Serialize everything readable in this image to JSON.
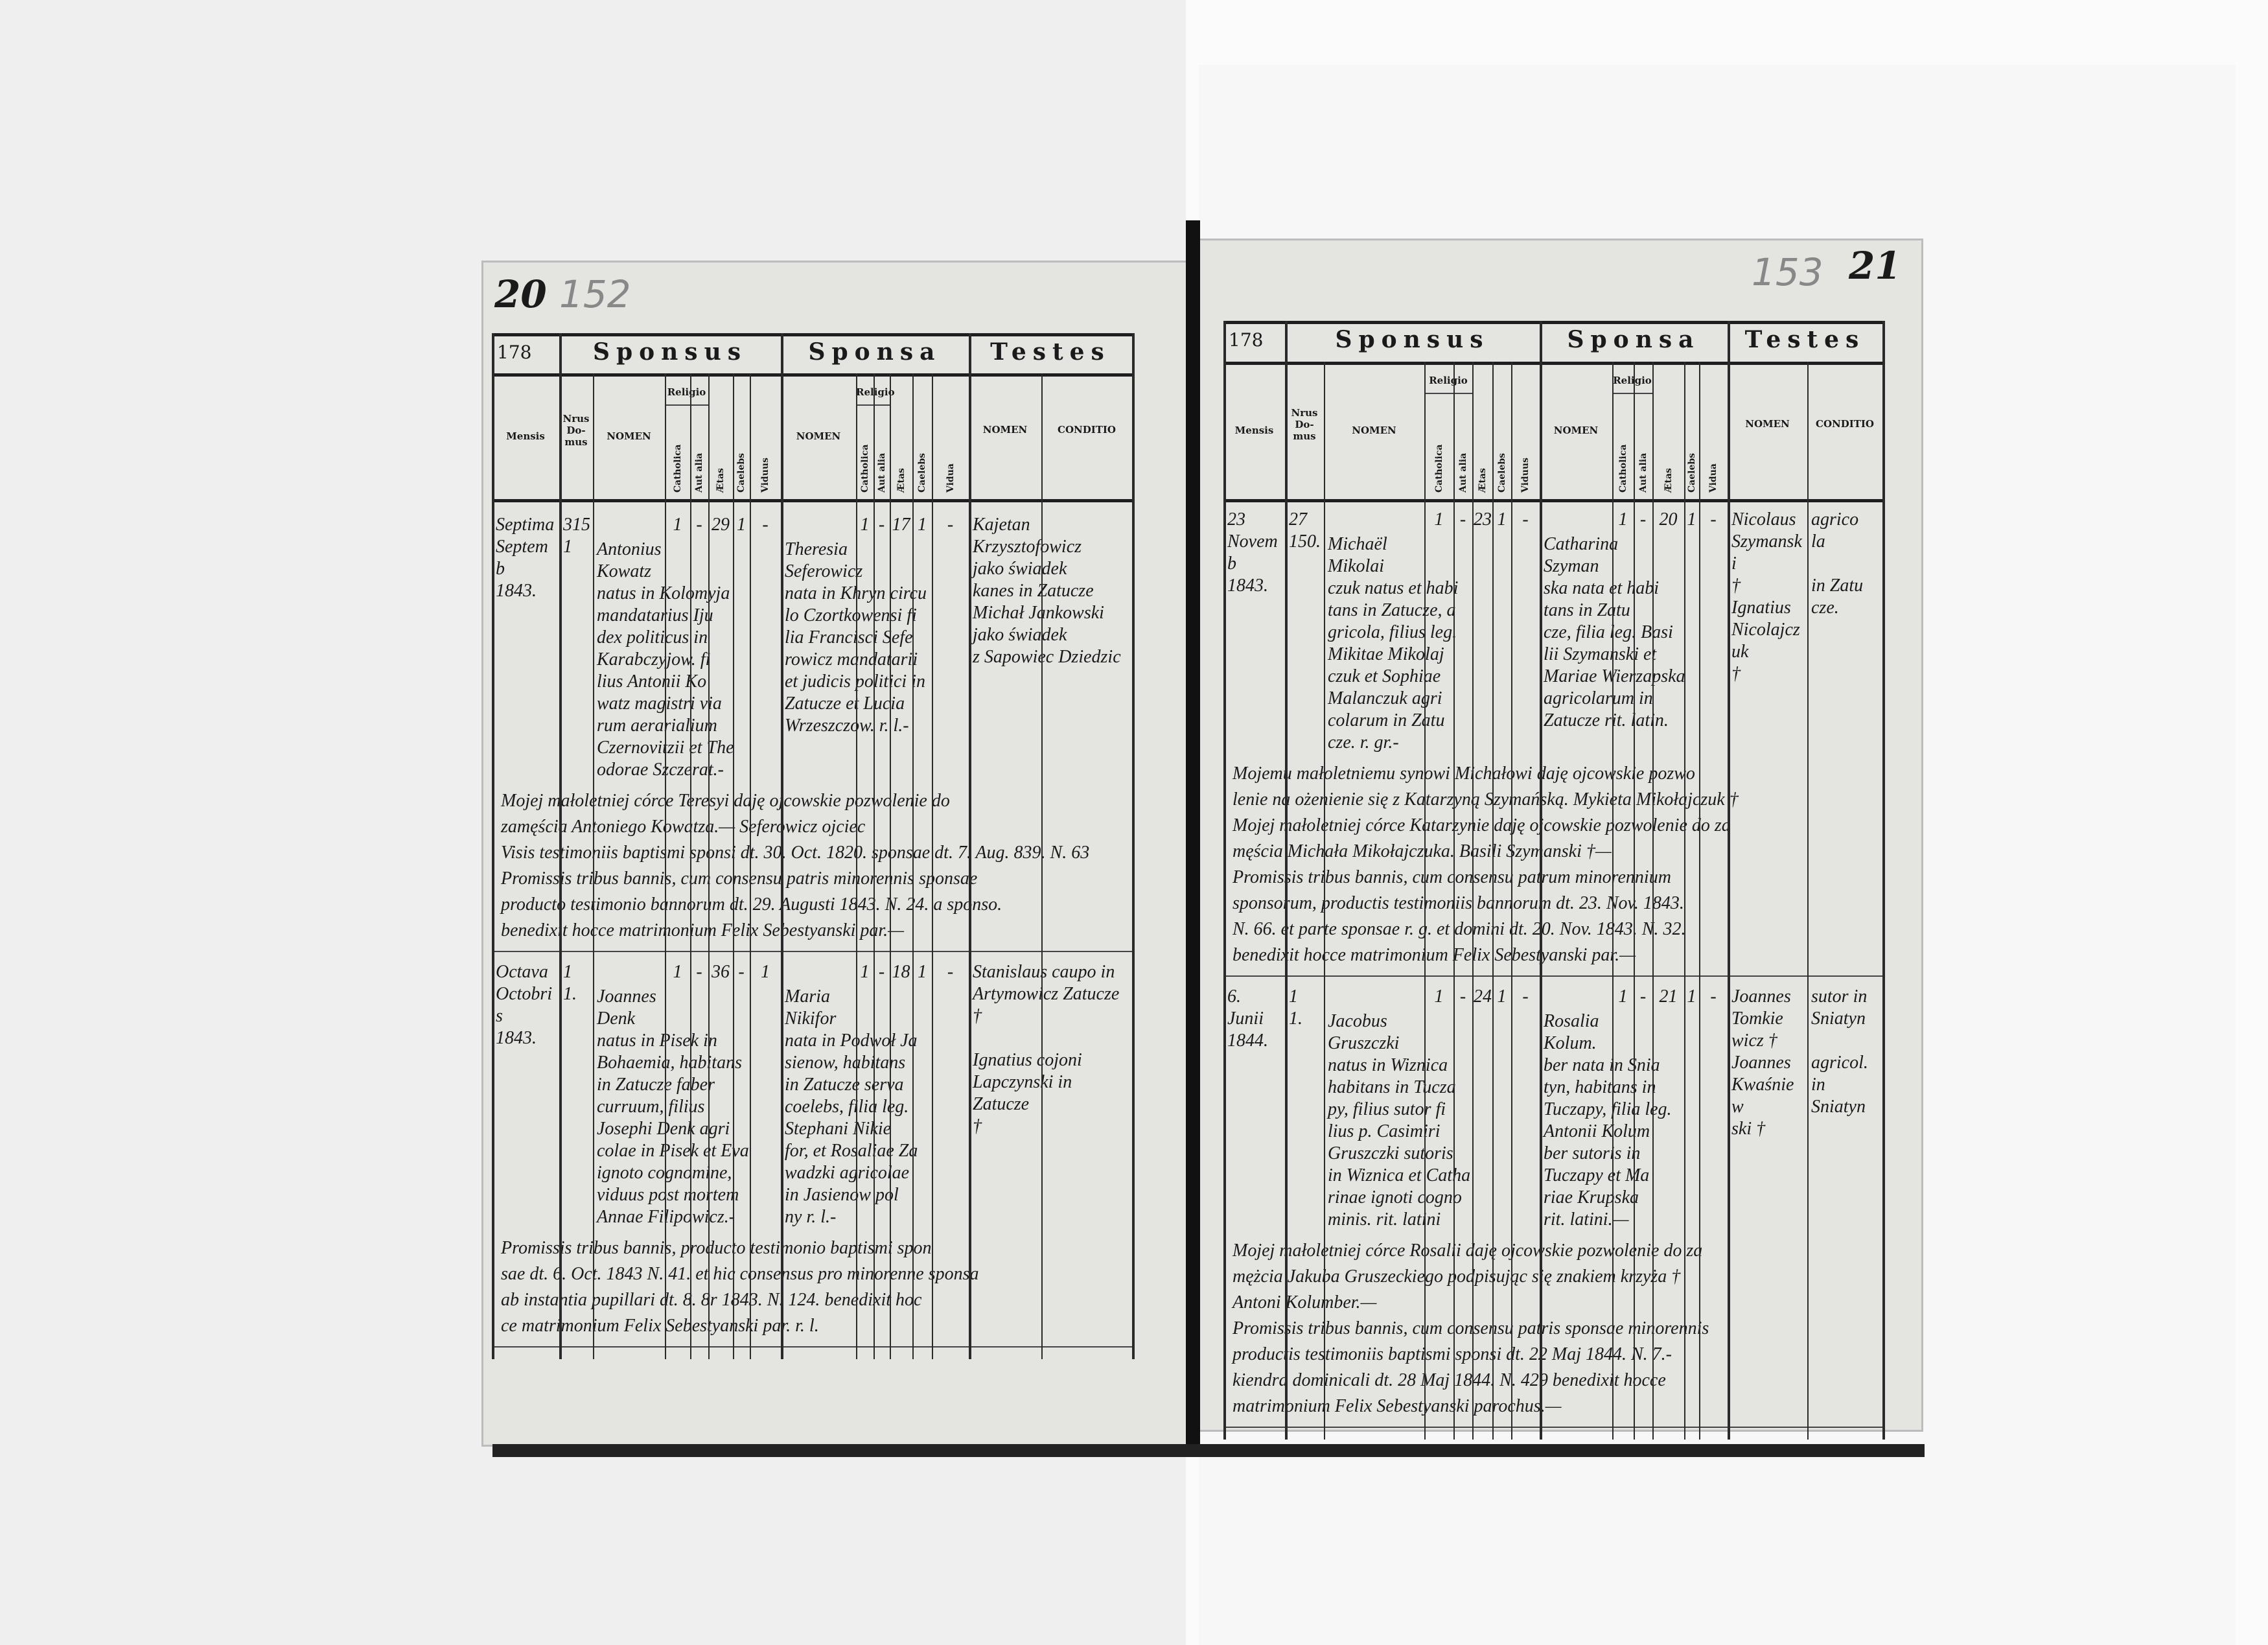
{
  "pages": [
    {
      "folio": "20",
      "pencil_folio": "152",
      "header": {
        "number": "178",
        "sponsus": "Sponsus",
        "sponsa": "Sponsa",
        "testes": "Testes",
        "mensis": "Mensis",
        "nrus_domus": "Nrus Do- mus",
        "nomen": "NOMEN",
        "religio": "Religio",
        "catholica": "Catholica",
        "aut_alia": "Aut alia",
        "aetas": "Ætas",
        "caelebs": "Caelebs",
        "viduus": "Viduus",
        "vidua": "Vidua",
        "conditio": "CONDITIO"
      },
      "entries": [
        {
          "mensis": [
            "Septima",
            "Septemb",
            "1843."
          ],
          "nrus": [
            "315",
            "1"
          ],
          "sponsus": [
            "Antonius",
            "Kowatz",
            "natus in Kolomyja",
            "mandatarius Iju",
            "dex politicus in",
            "Karabczyjow. fi",
            "lius Antonii Ko",
            "watz magistri via",
            "rum aerarialium",
            "Czernovitzii et The",
            "odorae Szczerat.-"
          ],
          "sponsus_marks": [
            "1",
            "-",
            "29",
            "1",
            "-"
          ],
          "sponsa": [
            "Theresia",
            "Seferowicz",
            "nata in Khryn circu",
            "lo Czortkowensi fi",
            "lia Francisci Sefe",
            "rowicz mandatarii",
            "et judicis politici in",
            "Zatucze et Lucia",
            "Wrzeszczow. r. l.-"
          ],
          "sponsa_marks": [
            "1",
            "-",
            "17",
            "1",
            "-"
          ],
          "testes": [
            "Kajetan Krzysztofowicz",
            "jako świadek",
            "kanes in Zatucze",
            "Michał Jankowski",
            "jako świadek",
            "z Sapowiec Dziedzic"
          ],
          "conditio": [],
          "notes": [
            "Mojej małoletniej córce Teresyi daję ojcowskie pozwolenie do",
            "zamęścia Antoniego Kowatza.—  Seferowicz ojciec",
            "Visis testimoniis baptismi sponsi dt. 30. Oct. 1820. sponsae dt. 7. Aug. 839. N. 63",
            "Promissis tribus bannis, cum consensu patris minorennis sponsae",
            "producto testimonio bannorum dt. 29. Augusti 1843. N. 24. a sponso.",
            "benedixit hocce matrimonium Felix Sebestyanski par.—"
          ]
        },
        {
          "mensis": [
            "Octava",
            "Octobris",
            "1843."
          ],
          "nrus": [
            "1",
            "1."
          ],
          "sponsus": [
            "Joannes",
            "Denk",
            "natus in Pisek in",
            "Bohaemia, habitans",
            "in Zatucze faber",
            "curruum, filius",
            "Josephi Denk agri",
            "colae in Pisek et Eva",
            "ignoto cognomine,",
            "viduus post mortem",
            "Annae Filipowicz.-"
          ],
          "sponsus_marks": [
            "1",
            "-",
            "36",
            "-",
            "1"
          ],
          "sponsa": [
            "Maria",
            "Nikifor",
            "nata in Podwoł Ja",
            "sienow, habitans",
            "in Zatucze serva",
            "coelebs, filia leg.",
            "Stephani Nikie",
            "for, et Rosaliae Za",
            "wadzki agricolae",
            "in Jasienow pol",
            "ny r. l.-"
          ],
          "sponsa_marks": [
            "1",
            "-",
            "18",
            "1",
            "-"
          ],
          "testes": [
            "Stanislaus caupo in",
            "Artymowicz Zatucze",
            "†",
            "",
            "Ignatius cojoni",
            "Lapczynski in Zatucze",
            "†"
          ],
          "conditio": [],
          "notes": [
            "Promissis tribus bannis, producto testimonio baptismi spon",
            "sae dt. 6. Oct. 1843 N. 41. et hic consensus pro minorenne sponsa",
            "ab instantia pupillari dt. 8. 8r 1843. N. 124. benedixit hoc",
            "ce matrimonium Felix Sebestyanski par. r. l."
          ]
        }
      ]
    },
    {
      "folio": "21",
      "pencil_folio": "153",
      "header": {
        "number": "178",
        "sponsus": "Sponsus",
        "sponsa": "Sponsa",
        "testes": "Testes",
        "mensis": "Mensis",
        "nrus_domus": "Nrus Do- mus",
        "nomen": "NOMEN",
        "religio": "Religio",
        "catholica": "Catholica",
        "aut_alia": "Aut alia",
        "aetas": "Ætas",
        "caelebs": "Caelebs",
        "viduus": "Viduus",
        "vidua": "Vidua",
        "conditio": "CONDITIO"
      },
      "entries": [
        {
          "mensis": [
            "23",
            "Novemb",
            "1843."
          ],
          "nrus": [
            "27",
            "150."
          ],
          "sponsus": [
            "Michaël",
            "Mikolai",
            "czuk natus et habi",
            "tans in Zatucze, a",
            "gricola, filius leg.",
            "Mikitae Mikolaj",
            "czuk et Sophiae",
            "Malanczuk agri",
            "colarum in Zatu",
            "cze. r. gr.-"
          ],
          "sponsus_marks": [
            "1",
            "-",
            "23",
            "1",
            "-"
          ],
          "sponsa": [
            "Catharina",
            "Szyman",
            "ska nata et habi",
            "tans in Zatu",
            "cze, filia leg. Basi",
            "lii Szymanski et",
            "Mariae Wierzapska",
            "agricolarum in",
            "Zatucze rit. latin."
          ],
          "sponsa_marks": [
            "1",
            "-",
            "20",
            "1",
            "-"
          ],
          "testes": [
            "Nicolaus",
            "Szymanski",
            "†",
            "Ignatius",
            "Nicolajczuk",
            "†"
          ],
          "conditio": [
            "agrico",
            "la",
            "",
            "in Zatu",
            "cze.",
            ""
          ],
          "notes": [
            "Mojemu małoletniemu synowi Michałowi daję ojcowskie pozwo",
            "lenie na ożenienie się z Katarzyną Szymańską. Mykieta Mikołajczuk †",
            "Mojej małoletniej córce Katarzynie daję ojcowskie pozwolenie do za",
            "męścia Michała Mikołajczuka. Basili Szymanski †—",
            "Promissis tribus bannis, cum consensu patrum minorennium",
            "sponsorum, productis testimoniis bannorum dt. 23. Nov. 1843.",
            "N. 66. et parte sponsae r. g. et domini dt. 20. Nov. 1843. N. 32.",
            "benedixit hocce matrimonium Felix Sebestyanski par.—"
          ]
        },
        {
          "mensis": [
            "6.",
            "Junii",
            "1844."
          ],
          "nrus": [
            "1",
            "1."
          ],
          "sponsus": [
            "Jacobus",
            "Gruszczki",
            "natus in Wiznica",
            "habitans in Tucza",
            "py, filius sutor fi",
            "lius p. Casimiri",
            "Gruszczki sutoris",
            "in Wiznica et Catha",
            "rinae ignoti cogno",
            "minis. rit. latini"
          ],
          "sponsus_marks": [
            "1",
            "-",
            "24",
            "1",
            "-"
          ],
          "sponsa": [
            "Rosalia",
            "Kolum.",
            "ber nata in Snia",
            "tyn, habitans in",
            "Tuczapy, filia leg.",
            "Antonii Kolum",
            "ber sutoris in",
            "Tuczapy et Ma",
            "riae Krupska",
            "rit. latini.—"
          ],
          "sponsa_marks": [
            "1",
            "-",
            "21",
            "1",
            "-"
          ],
          "testes": [
            "Joannes",
            "Tomkie",
            "wicz †",
            "Joannes",
            "Kwaśniew",
            "ski †"
          ],
          "conditio": [
            "sutor in",
            "Sniatyn",
            "",
            "agricol.",
            "in",
            "Sniatyn"
          ],
          "notes": [
            "Mojej małoletniej córce Rosalii daję ojcowskie pozwolenie do za",
            "mężcia Jakuba Gruszeckiego podpisując się znakiem krzyża †",
            "Antoni Kolumber.—",
            "Promissis tribus bannis, cum consensu patris sponsae minorennis",
            "productis testimoniis baptismi sponsi dt. 22 Maj 1844. N. 7.-",
            "kiendra dominicali dt. 28 Maj 1844. N. 429 benedixit hocce",
            "matrimonium Felix Sebestyanski parochus.—"
          ]
        }
      ]
    }
  ]
}
